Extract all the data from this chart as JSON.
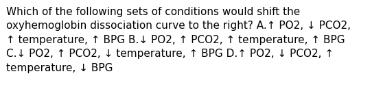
{
  "lines": [
    "Which of the following sets of conditions would shift the",
    "oxyhemoglobin dissociation curve to the right? A.↑ PO2, ↓ PCO2,",
    "↑ temperature, ↑ BPG B.↓ PO2, ↑ PCO2, ↑ temperature, ↑ BPG",
    "C.↓ PO2, ↑ PCO2, ↓ temperature, ↑ BPG D.↑ PO2, ↓ PCO2, ↑",
    "temperature, ↓ BPG"
  ],
  "background_color": "#ffffff",
  "text_color": "#000000",
  "font_size": 11.0,
  "fig_width": 5.58,
  "fig_height": 1.46,
  "dpi": 100
}
